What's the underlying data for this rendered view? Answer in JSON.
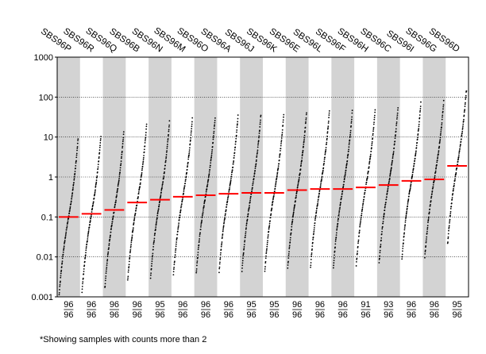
{
  "chart_data": {
    "type": "scatter",
    "subtype": "strip-plot",
    "y_scale": "log",
    "ylim": [
      0.001,
      1000
    ],
    "y_ticks": [
      "0.001",
      "0.01",
      "0.1",
      "1",
      "10",
      "100",
      "1000"
    ],
    "grid": "dotted horizontal at each decade",
    "categories": [
      "SBS96P",
      "SBS96R",
      "SBS96Q",
      "SBS96B",
      "SBS96N",
      "SBS96M",
      "SBS96O",
      "SBS96A",
      "SBS96J",
      "SBS96K",
      "SBS96E",
      "SBS96L",
      "SBS96F",
      "SBS96H",
      "SBS96C",
      "SBS96I",
      "SBS96G",
      "SBS96D"
    ],
    "medians": [
      0.1,
      0.12,
      0.15,
      0.23,
      0.27,
      0.32,
      0.35,
      0.38,
      0.4,
      0.4,
      0.47,
      0.5,
      0.5,
      0.55,
      0.63,
      0.8,
      0.87,
      1.9
    ],
    "counts_top": [
      "96",
      "96",
      "96",
      "96",
      "95",
      "96",
      "96",
      "96",
      "95",
      "95",
      "96",
      "96",
      "96",
      "91",
      "93",
      "96",
      "96",
      "95"
    ],
    "counts_bottom": [
      "96",
      "96",
      "96",
      "96",
      "96",
      "96",
      "96",
      "96",
      "96",
      "96",
      "96",
      "96",
      "96",
      "96",
      "96",
      "96",
      "96",
      "96"
    ],
    "median_color": "#ff0000",
    "shade_color": "#d3d3d3",
    "point_color": "#000000",
    "footnote": "*Showing samples with counts more than 2"
  }
}
